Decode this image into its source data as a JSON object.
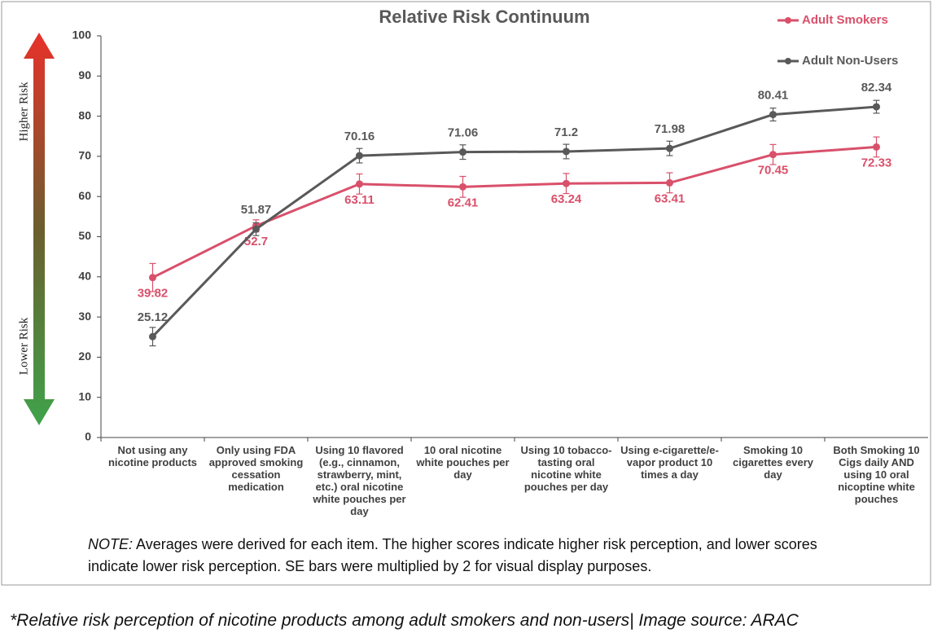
{
  "chart_data": {
    "type": "line",
    "title": "Relative Risk Continuum",
    "categories": [
      "Not using any nicotine products",
      "Only using FDA approved smoking cessation medication",
      "Using 10 flavored (e.g., cinnamon, strawberry, mint, etc.) oral nicotine white pouches per day",
      "10 oral nicotine white pouches per day",
      "Using 10 tobacco-tasting oral nicotine white pouches per day",
      "Using e-cigarette/e-vapor product 10 times a day",
      "Smoking 10 cigarettes every day",
      "Both Smoking 10 Cigs daily AND using 10 oral nicoptine white pouches"
    ],
    "series": [
      {
        "name": "Adult Smokers",
        "color": "#d9506b",
        "values": [
          39.82,
          52.7,
          63.11,
          62.41,
          63.24,
          63.41,
          70.45,
          72.33
        ],
        "errors": [
          3.5,
          1.5,
          2.5,
          2.6,
          2.5,
          2.5,
          2.5,
          2.5
        ]
      },
      {
        "name": "Adult Non-Users",
        "color": "#595959",
        "values": [
          25.12,
          51.87,
          70.16,
          71.06,
          71.2,
          71.98,
          80.41,
          82.34
        ],
        "errors": [
          2.3,
          1.6,
          1.8,
          1.8,
          1.8,
          1.8,
          1.6,
          1.6
        ]
      }
    ],
    "ylim": [
      0,
      100
    ],
    "yticks": [
      0,
      10,
      20,
      30,
      40,
      50,
      60,
      70,
      80,
      90,
      100
    ],
    "grid": false,
    "legend": "upper right",
    "arrow_labels": {
      "top": "Higher Risk",
      "bottom": "Lower Risk"
    },
    "note_label": "NOTE:",
    "note": "Averages were derived for each item. The higher scores indicate higher risk perception, and lower scores indicate lower risk perception. SE bars were multiplied by 2 for visual display purposes.",
    "caption": "*Relative risk perception of nicotine products among adult smokers and non-users| Image source: ARAC"
  }
}
